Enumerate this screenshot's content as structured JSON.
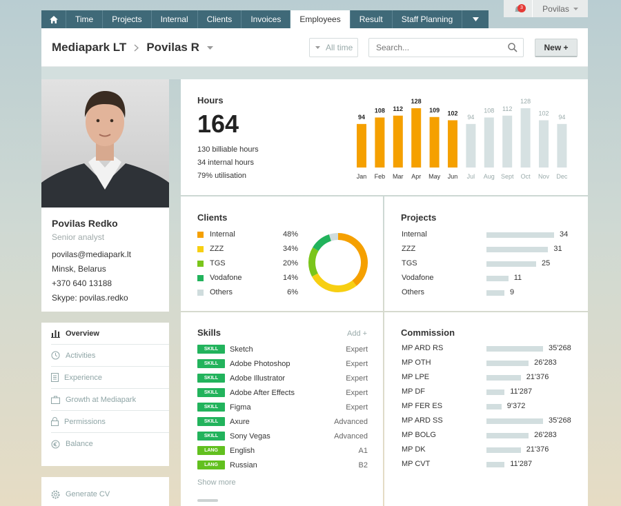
{
  "nav": {
    "tabs": [
      "Time",
      "Projects",
      "Internal",
      "Clients",
      "Invoices",
      "Employees",
      "Result",
      "Staff Planning"
    ],
    "active": "Employees"
  },
  "userbar": {
    "notifications": "3",
    "user": "Povilas"
  },
  "header": {
    "company": "Mediapark LT",
    "person": "Povilas R",
    "filter": "All time",
    "search_placeholder": "Search...",
    "new_label": "New +"
  },
  "profile": {
    "name": "Povilas Redko",
    "role": "Senior analyst",
    "email": "povilas@mediapark.lt",
    "location": "Minsk, Belarus",
    "phone": "+370 640 13188",
    "skype": "Skype: povilas.redko"
  },
  "menu": [
    "Overview",
    "Activities",
    "Experience",
    "Growth at Mediapark",
    "Permissions",
    "Balance"
  ],
  "generate_cv": "Generate CV",
  "hours": {
    "title": "Hours",
    "total": "164",
    "lines": [
      "130 billiable hours",
      "34 internal hours",
      "79% utilisation"
    ]
  },
  "chart_data": {
    "type": "bar",
    "categories": [
      "Jan",
      "Feb",
      "Mar",
      "Apr",
      "May",
      "Jun",
      "Jul",
      "Aug",
      "Sept",
      "Oct",
      "Nov",
      "Dec"
    ],
    "values": [
      94,
      108,
      112,
      128,
      109,
      102,
      94,
      108,
      112,
      128,
      102,
      94
    ],
    "highlighted": [
      true,
      true,
      true,
      true,
      true,
      true,
      false,
      false,
      false,
      false,
      false,
      false
    ],
    "colors": {
      "highlight": "#f5a000",
      "muted": "#d6e1e2"
    }
  },
  "clients": {
    "title": "Clients",
    "items": [
      {
        "name": "Internal",
        "pct": "48%",
        "color": "#f5a000"
      },
      {
        "name": "ZZZ",
        "pct": "34%",
        "color": "#f7cf12"
      },
      {
        "name": "TGS",
        "pct": "20%",
        "color": "#7ac51b"
      },
      {
        "name": "Vodafone",
        "pct": "14%",
        "color": "#22b35c"
      },
      {
        "name": "Others",
        "pct": "6%",
        "color": "#cfdcdd"
      }
    ]
  },
  "projects": {
    "title": "Projects",
    "items": [
      {
        "name": "Internal",
        "value": 34
      },
      {
        "name": "ZZZ",
        "value": 31
      },
      {
        "name": "TGS",
        "value": 25
      },
      {
        "name": "Vodafone",
        "value": 11
      },
      {
        "name": "Others",
        "value": 9
      }
    ]
  },
  "skills": {
    "title": "Skills",
    "add": "Add +",
    "show_more": "Show more",
    "items": [
      {
        "tag": "SKILL",
        "name": "Sketch",
        "level": "Expert"
      },
      {
        "tag": "SKILL",
        "name": "Adobe Photoshop",
        "level": "Expert"
      },
      {
        "tag": "SKILL",
        "name": "Adobe Illustrator",
        "level": "Expert"
      },
      {
        "tag": "SKILL",
        "name": "Adobe After Effects",
        "level": "Expert"
      },
      {
        "tag": "SKILL",
        "name": "Figma",
        "level": "Expert"
      },
      {
        "tag": "SKILL",
        "name": "Axure",
        "level": "Advanced"
      },
      {
        "tag": "SKILL",
        "name": "Sony Vegas",
        "level": "Advanced"
      },
      {
        "tag": "LANG",
        "name": "English",
        "level": "A1"
      },
      {
        "tag": "LANG",
        "name": "Russian",
        "level": "B2"
      }
    ]
  },
  "commission": {
    "title": "Commission",
    "items": [
      {
        "name": "MP ARD RS",
        "value": "35'268",
        "amount": 35268
      },
      {
        "name": "MP OTH",
        "value": "26'283",
        "amount": 26283
      },
      {
        "name": "MP LPE",
        "value": "21'376",
        "amount": 21376
      },
      {
        "name": "MP DF",
        "value": "11'287",
        "amount": 11287
      },
      {
        "name": "MP FER ES",
        "value": "9'372",
        "amount": 9372
      },
      {
        "name": "MP ARD SS",
        "value": "35'268",
        "amount": 35268
      },
      {
        "name": "MP BOLG",
        "value": "26'283",
        "amount": 26283
      },
      {
        "name": "MP DK",
        "value": "21'376",
        "amount": 21376
      },
      {
        "name": "MP CVT",
        "value": "11'287",
        "amount": 11287
      }
    ]
  }
}
